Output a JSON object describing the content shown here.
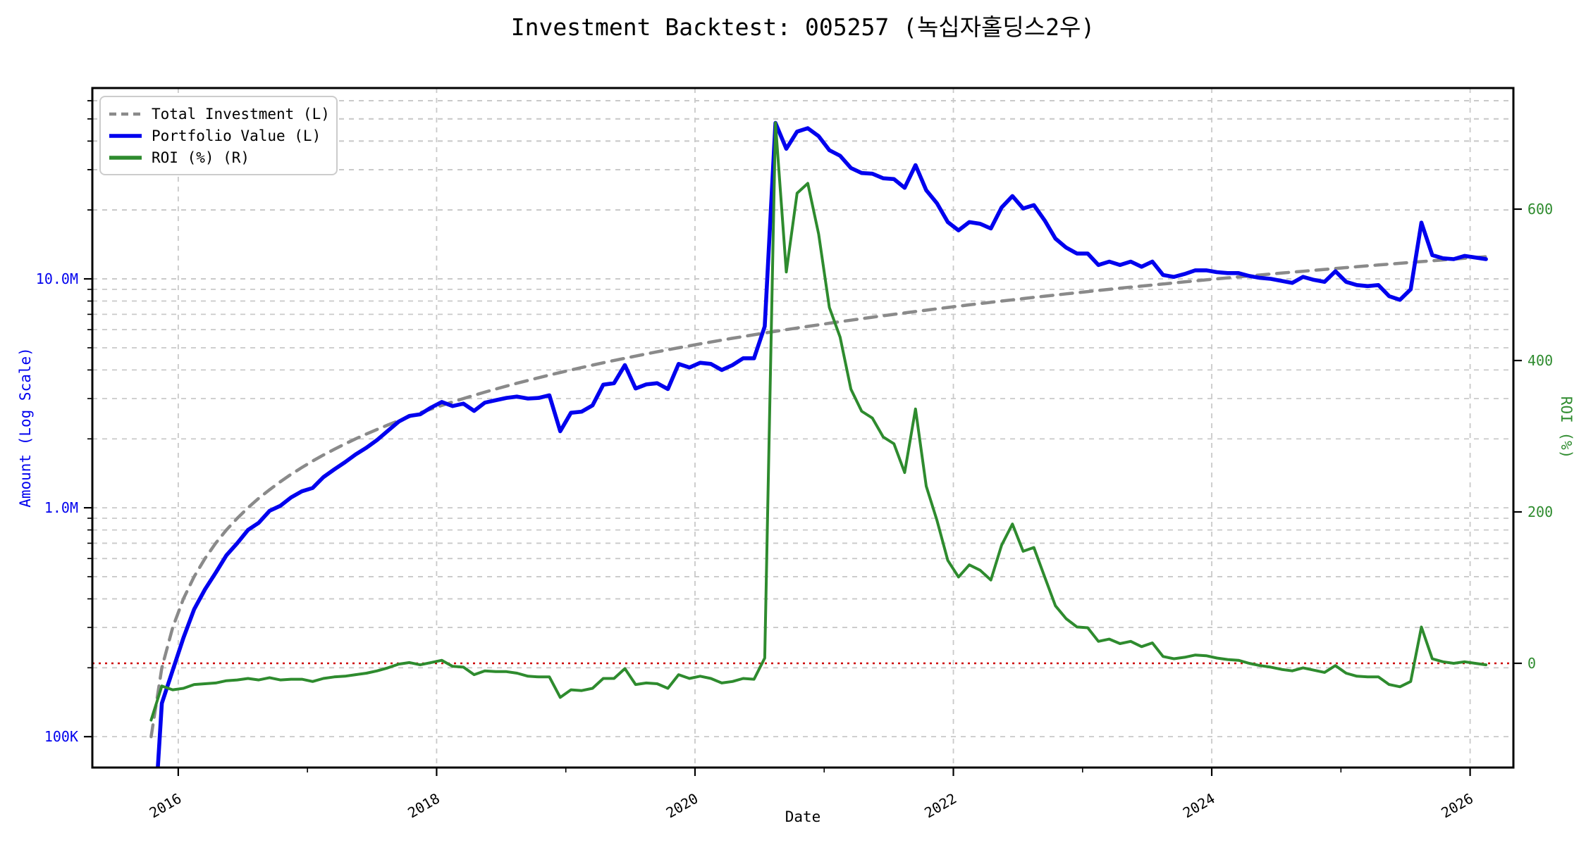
{
  "title": "Investment Backtest: 005257 (녹십자홀딩스2우)",
  "colors": {
    "portfolio": "#0000ee",
    "investment": "#8a8a8a",
    "roi": "#2e8b2e",
    "zero_line": "#cc0000",
    "grid": "#c9c9c9",
    "spine": "#000000",
    "left_axis_text": "#0000ee",
    "right_axis_text": "#2e8b2e"
  },
  "axes": {
    "x": {
      "label": "Date",
      "tick_values": [
        2016,
        2018,
        2020,
        2022,
        2024,
        2026
      ],
      "tick_labels": [
        "2016",
        "2018",
        "2020",
        "2022",
        "2024",
        "2026"
      ],
      "minor_tick_values": [
        2017,
        2019,
        2021,
        2023,
        2025
      ],
      "range": [
        2015.335,
        2026.335
      ]
    },
    "y_left": {
      "label": "Amount (Log Scale)",
      "scale": "log",
      "units": "million KRW",
      "tick_values": [
        0.1,
        1,
        10
      ],
      "tick_labels": [
        "100K",
        "1.0M",
        "10.0M"
      ],
      "range": [
        0.0733,
        68.2
      ]
    },
    "y_right": {
      "label": "ROI (%)",
      "scale": "linear",
      "tick_values": [
        0,
        200,
        400,
        600
      ],
      "tick_labels": [
        "0",
        "200",
        "400",
        "600"
      ],
      "range": [
        -137.7,
        760
      ]
    }
  },
  "legend": {
    "items": [
      {
        "label": "Total Investment (L)",
        "color": "#8a8a8a",
        "style": "dashed"
      },
      {
        "label": "Portfolio Value (L)",
        "color": "#0000ee",
        "style": "solid"
      },
      {
        "label": "ROI (%) (R)",
        "color": "#2e8b2e",
        "style": "solid"
      }
    ]
  },
  "reference_line": {
    "axis": "right",
    "value": 0,
    "color": "#cc0000",
    "style": "dotted"
  },
  "chart_data": {
    "type": "line",
    "title": "Investment Backtest: 005257 (녹십자홀딩스2우)",
    "xlabel": "Date",
    "ylabel_left": "Amount (Log Scale)",
    "ylabel_right": "ROI (%)",
    "x_unit": "decimal year (monthly steps)",
    "x": [
      2015.79,
      2015.873,
      2015.957,
      2016.04,
      2016.123,
      2016.207,
      2016.29,
      2016.373,
      2016.457,
      2016.54,
      2016.623,
      2016.707,
      2016.79,
      2016.873,
      2016.957,
      2017.04,
      2017.123,
      2017.207,
      2017.29,
      2017.373,
      2017.457,
      2017.54,
      2017.623,
      2017.707,
      2017.79,
      2017.873,
      2017.957,
      2018.04,
      2018.123,
      2018.207,
      2018.29,
      2018.373,
      2018.457,
      2018.54,
      2018.623,
      2018.707,
      2018.79,
      2018.873,
      2018.957,
      2019.04,
      2019.123,
      2019.207,
      2019.29,
      2019.373,
      2019.457,
      2019.54,
      2019.623,
      2019.707,
      2019.79,
      2019.873,
      2019.957,
      2020.04,
      2020.123,
      2020.207,
      2020.29,
      2020.373,
      2020.457,
      2020.54,
      2020.623,
      2020.707,
      2020.79,
      2020.873,
      2020.957,
      2021.04,
      2021.123,
      2021.207,
      2021.29,
      2021.373,
      2021.457,
      2021.54,
      2021.623,
      2021.707,
      2021.79,
      2021.873,
      2021.957,
      2022.04,
      2022.123,
      2022.207,
      2022.29,
      2022.373,
      2022.457,
      2022.54,
      2022.623,
      2022.707,
      2022.79,
      2022.873,
      2022.957,
      2023.04,
      2023.123,
      2023.207,
      2023.29,
      2023.373,
      2023.457,
      2023.54,
      2023.623,
      2023.707,
      2023.79,
      2023.873,
      2023.957,
      2024.04,
      2024.123,
      2024.207,
      2024.29,
      2024.373,
      2024.457,
      2024.54,
      2024.623,
      2024.707,
      2024.79,
      2024.873,
      2024.957,
      2025.04,
      2025.123,
      2025.207,
      2025.29,
      2025.373,
      2025.457,
      2025.54,
      2025.623,
      2025.707,
      2025.79,
      2025.873,
      2025.957,
      2026.04,
      2026.123
    ],
    "series": [
      {
        "name": "Total Investment (L)",
        "axis": "left",
        "color": "#8a8a8a",
        "style": "dashed",
        "units": "million KRW",
        "values": [
          0.1,
          0.2,
          0.3,
          0.4,
          0.5,
          0.6,
          0.7,
          0.8,
          0.9,
          1.0,
          1.1,
          1.2,
          1.3,
          1.4,
          1.5,
          1.6,
          1.7,
          1.8,
          1.9,
          2.0,
          2.1,
          2.2,
          2.3,
          2.4,
          2.5,
          2.6,
          2.7,
          2.8,
          2.9,
          3.0,
          3.1,
          3.2,
          3.3,
          3.4,
          3.5,
          3.6,
          3.7,
          3.8,
          3.9,
          4.0,
          4.1,
          4.2,
          4.3,
          4.4,
          4.5,
          4.6,
          4.7,
          4.8,
          4.9,
          5.0,
          5.1,
          5.2,
          5.3,
          5.4,
          5.5,
          5.6,
          5.7,
          5.8,
          5.9,
          6.0,
          6.1,
          6.2,
          6.3,
          6.4,
          6.5,
          6.6,
          6.7,
          6.8,
          6.9,
          7.0,
          7.1,
          7.2,
          7.3,
          7.4,
          7.5,
          7.6,
          7.7,
          7.8,
          7.9,
          8.0,
          8.1,
          8.2,
          8.3,
          8.4,
          8.5,
          8.6,
          8.7,
          8.8,
          8.9,
          9.0,
          9.1,
          9.2,
          9.3,
          9.4,
          9.5,
          9.6,
          9.7,
          9.8,
          9.9,
          10.0,
          10.1,
          10.2,
          10.3,
          10.4,
          10.5,
          10.6,
          10.7,
          10.8,
          10.9,
          11.0,
          11.1,
          11.2,
          11.3,
          11.4,
          11.5,
          11.6,
          11.7,
          11.8,
          11.9,
          12.0,
          12.1,
          12.2,
          12.3,
          12.4,
          12.5
        ]
      },
      {
        "name": "Portfolio Value (L)",
        "axis": "left",
        "color": "#0000ee",
        "style": "solid",
        "units": "million KRW",
        "values": [
          0.025,
          0.14,
          0.195,
          0.27,
          0.36,
          0.44,
          0.52,
          0.62,
          0.7,
          0.8,
          0.86,
          0.97,
          1.02,
          1.11,
          1.18,
          1.22,
          1.36,
          1.47,
          1.58,
          1.71,
          1.83,
          1.98,
          2.17,
          2.38,
          2.52,
          2.56,
          2.74,
          2.9,
          2.78,
          2.85,
          2.65,
          2.88,
          2.95,
          3.02,
          3.06,
          3.0,
          3.02,
          3.1,
          2.16,
          2.6,
          2.63,
          2.8,
          3.45,
          3.5,
          4.2,
          3.32,
          3.46,
          3.5,
          3.3,
          4.25,
          4.1,
          4.3,
          4.25,
          4.0,
          4.2,
          4.5,
          4.5,
          6.2,
          48.0,
          37.0,
          44.0,
          45.5,
          42.0,
          36.5,
          34.5,
          30.5,
          29.0,
          28.8,
          27.5,
          27.3,
          25.0,
          31.4,
          24.4,
          21.4,
          17.7,
          16.3,
          17.7,
          17.4,
          16.6,
          20.5,
          23.0,
          20.3,
          21.0,
          18.0,
          15.0,
          13.7,
          12.9,
          12.9,
          11.5,
          11.9,
          11.5,
          11.9,
          11.3,
          11.9,
          10.4,
          10.2,
          10.5,
          10.9,
          10.9,
          10.7,
          10.6,
          10.6,
          10.3,
          10.1,
          10.0,
          9.8,
          9.6,
          10.2,
          9.9,
          9.7,
          10.8,
          9.7,
          9.4,
          9.3,
          9.4,
          8.4,
          8.1,
          9.0,
          17.6,
          12.7,
          12.3,
          12.2,
          12.6,
          12.4,
          12.2
        ]
      },
      {
        "name": "ROI (%) (R)",
        "axis": "right",
        "color": "#2e8b2e",
        "style": "solid",
        "units": "percent",
        "values": [
          -75,
          -30,
          -35,
          -33,
          -28,
          -27,
          -26,
          -23,
          -22,
          -20,
          -22,
          -19,
          -22,
          -21,
          -21,
          -24,
          -20,
          -18,
          -17,
          -15,
          -13,
          -10,
          -6,
          -1,
          1,
          -2,
          1,
          4,
          -4,
          -5,
          -15,
          -10,
          -11,
          -11,
          -13,
          -17,
          -18,
          -18,
          -45,
          -35,
          -36,
          -33,
          -20,
          -20,
          -7,
          -28,
          -26,
          -27,
          -33,
          -15,
          -20,
          -17,
          -20,
          -26,
          -24,
          -20,
          -21,
          7,
          714,
          517,
          621,
          634,
          567,
          470,
          431,
          362,
          333,
          324,
          299,
          290,
          252,
          336,
          234,
          189,
          136,
          114,
          130,
          123,
          110,
          156,
          184,
          148,
          153,
          114,
          76,
          59,
          48,
          47,
          29,
          32,
          26,
          29,
          22,
          27,
          9,
          6,
          8,
          11,
          10,
          7,
          5,
          4,
          0,
          -3,
          -5,
          -8,
          -10,
          -6,
          -9,
          -12,
          -3,
          -13,
          -17,
          -18,
          -18,
          -28,
          -31,
          -24,
          48,
          6,
          2,
          0,
          2,
          0,
          -2
        ]
      }
    ]
  }
}
